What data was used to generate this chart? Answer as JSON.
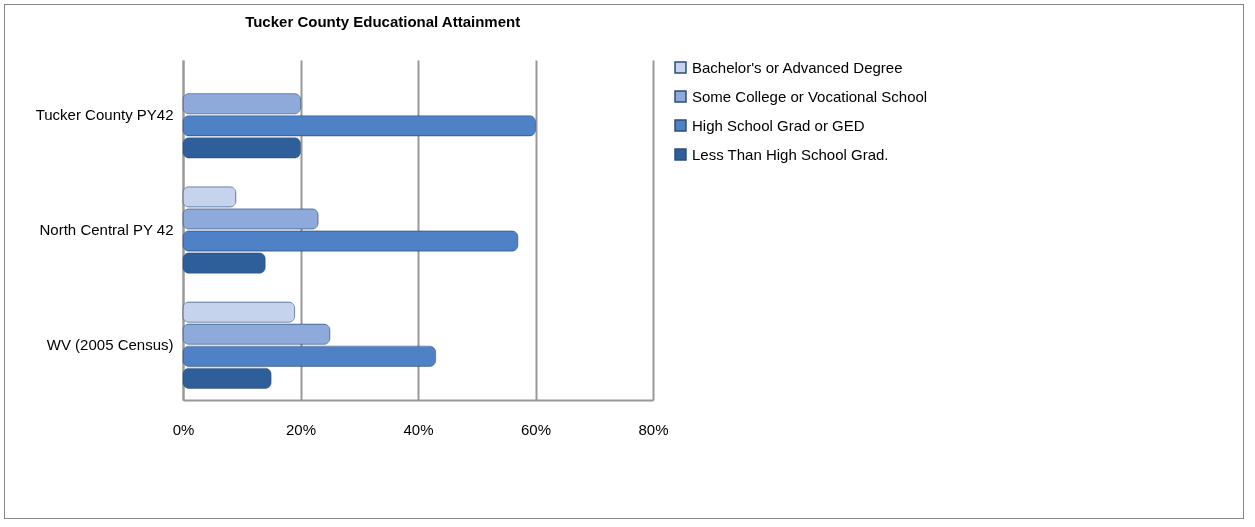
{
  "chart_data": {
    "type": "bar",
    "orientation": "horizontal",
    "title": "Tucker County Educational Attainment",
    "categories": [
      "Tucker County PY42",
      "North Central PY 42",
      "WV (2005 Census)"
    ],
    "series": [
      {
        "name": "Bachelor's or Advanced Degree",
        "color": "#c5d3ec",
        "values": [
          null,
          9,
          19
        ]
      },
      {
        "name": "Some College or Vocational School",
        "color": "#8eaadb",
        "values": [
          20,
          23,
          25
        ]
      },
      {
        "name": "High School Grad or GED",
        "color": "#4f81c6",
        "values": [
          60,
          57,
          43
        ]
      },
      {
        "name": "Less Than High School Grad.",
        "color": "#2f5f9a",
        "values": [
          20,
          14,
          15
        ]
      }
    ],
    "xlim": [
      0,
      80
    ],
    "xticks": [
      {
        "value": 0,
        "label": "0%"
      },
      {
        "value": 20,
        "label": "20%"
      },
      {
        "value": 40,
        "label": "40%"
      },
      {
        "value": 60,
        "label": "60%"
      },
      {
        "value": 80,
        "label": "80%"
      }
    ],
    "grid": "x",
    "legend": "right"
  }
}
